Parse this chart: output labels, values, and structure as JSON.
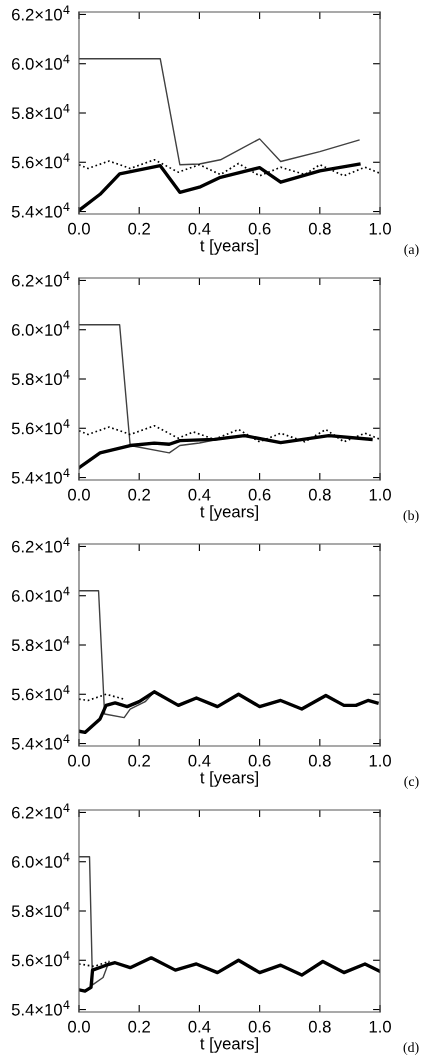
{
  "chart_data": [
    {
      "type": "line",
      "xlabel": "t [years]",
      "annotations": [
        "(a)"
      ],
      "xlim": [
        0,
        1
      ],
      "ylim": [
        53900,
        62100
      ],
      "xticks": [
        {
          "value": 0,
          "label": "0.0"
        },
        {
          "value": 0.2,
          "label": "0.2"
        },
        {
          "value": 0.4,
          "label": "0.4"
        },
        {
          "value": 0.6,
          "label": "0.6"
        },
        {
          "value": 0.8,
          "label": "0.8"
        },
        {
          "value": 1,
          "label": "1.0"
        }
      ],
      "yticks": [
        {
          "value": 54000,
          "label": "5.4×10$^{4}$"
        },
        {
          "value": 56000,
          "label": "5.6×10$^{4}$"
        },
        {
          "value": 58000,
          "label": "5.8×10$^{4}$"
        },
        {
          "value": 60000,
          "label": "6.0×10$^{4}$"
        },
        {
          "value": 62000,
          "label": "6.2×10$^{4}$"
        }
      ],
      "grid": false,
      "legend": false,
      "series": [
        {
          "color": "#404040",
          "line_style": "solid",
          "x": [
            0,
            0.27,
            0.335,
            0.4,
            0.47,
            0.6,
            0.67,
            0.8,
            0.93
          ],
          "values": [
            60200,
            60200,
            55900,
            55930,
            56100,
            56950,
            56030,
            56430,
            56900
          ]
        },
        {
          "color": "#000000",
          "line_style": "solid",
          "x": [
            0,
            0.07,
            0.135,
            0.27,
            0.335,
            0.4,
            0.47,
            0.6,
            0.67,
            0.8,
            0.93
          ],
          "values": [
            54050,
            54700,
            55530,
            55860,
            54780,
            54990,
            55390,
            55780,
            55190,
            55650,
            55920
          ]
        },
        {
          "color": "#000000",
          "line_style": "dotted",
          "x": [
            0,
            0.03,
            0.1,
            0.17,
            0.25,
            0.33,
            0.4,
            0.47,
            0.53,
            0.6,
            0.67,
            0.75,
            0.8,
            0.88,
            0.95,
            1.0
          ],
          "values": [
            55900,
            55750,
            56050,
            55750,
            56100,
            55600,
            55900,
            55500,
            55950,
            55450,
            55800,
            55500,
            55900,
            55450,
            55800,
            55550
          ]
        }
      ]
    },
    {
      "type": "line",
      "xlabel": "t [years]",
      "annotations": [
        "(b)"
      ],
      "xlim": [
        0,
        1
      ],
      "ylim": [
        53900,
        62100
      ],
      "xticks": [
        {
          "value": 0,
          "label": "0.0"
        },
        {
          "value": 0.2,
          "label": "0.2"
        },
        {
          "value": 0.4,
          "label": "0.4"
        },
        {
          "value": 0.6,
          "label": "0.6"
        },
        {
          "value": 0.8,
          "label": "0.8"
        },
        {
          "value": 1,
          "label": "1.0"
        }
      ],
      "yticks": [
        {
          "value": 54000,
          "label": "5.4×10$^{4}$"
        },
        {
          "value": 56000,
          "label": "5.6×10$^{4}$"
        },
        {
          "value": 58000,
          "label": "5.8×10$^{4}$"
        },
        {
          "value": 60000,
          "label": "6.0×10$^{4}$"
        },
        {
          "value": 62000,
          "label": "6.2×10$^{4}$"
        }
      ],
      "grid": false,
      "legend": false,
      "series": [
        {
          "color": "#404040",
          "line_style": "solid",
          "x": [
            0,
            0.135,
            0.17,
            0.3,
            0.335,
            0.4,
            0.5
          ],
          "values": [
            60200,
            60200,
            55300,
            55000,
            55300,
            55400,
            55650
          ]
        },
        {
          "color": "#000000",
          "line_style": "solid",
          "x": [
            0,
            0.07,
            0.17,
            0.25,
            0.3,
            0.335,
            0.45,
            0.55,
            0.67,
            0.83,
            0.97
          ],
          "values": [
            54400,
            55000,
            55300,
            55400,
            55350,
            55500,
            55550,
            55700,
            55420,
            55700,
            55550
          ]
        },
        {
          "color": "#000000",
          "line_style": "dotted",
          "x": [
            0,
            0.03,
            0.1,
            0.17,
            0.25,
            0.33,
            0.38,
            0.45,
            0.53,
            0.6,
            0.67,
            0.75,
            0.82,
            0.88,
            0.95,
            1.0
          ],
          "values": [
            55900,
            55750,
            56050,
            55750,
            56100,
            55600,
            55850,
            55550,
            55950,
            55450,
            55800,
            55450,
            55950,
            55450,
            55800,
            55550
          ]
        }
      ]
    },
    {
      "type": "line",
      "xlabel": "t [years]",
      "annotations": [
        "(c)"
      ],
      "xlim": [
        0,
        1
      ],
      "ylim": [
        53900,
        62100
      ],
      "xticks": [
        {
          "value": 0,
          "label": "0.0"
        },
        {
          "value": 0.2,
          "label": "0.2"
        },
        {
          "value": 0.4,
          "label": "0.4"
        },
        {
          "value": 0.6,
          "label": "0.6"
        },
        {
          "value": 0.8,
          "label": "0.8"
        },
        {
          "value": 1,
          "label": "1.0"
        }
      ],
      "yticks": [
        {
          "value": 54000,
          "label": "5.4×10$^{4}$"
        },
        {
          "value": 56000,
          "label": "5.6×10$^{4}$"
        },
        {
          "value": 58000,
          "label": "5.8×10$^{4}$"
        },
        {
          "value": 60000,
          "label": "6.0×10$^{4}$"
        },
        {
          "value": 62000,
          "label": "6.2×10$^{4}$"
        }
      ],
      "grid": false,
      "legend": false,
      "series": [
        {
          "color": "#404040",
          "line_style": "solid",
          "x": [
            0,
            0.065,
            0.085,
            0.15,
            0.17,
            0.22,
            0.25
          ],
          "values": [
            60200,
            60200,
            55200,
            55050,
            55400,
            55700,
            56100
          ]
        },
        {
          "color": "#000000",
          "line_style": "solid",
          "x": [
            0,
            0.02,
            0.07,
            0.09,
            0.12,
            0.16,
            0.2,
            0.25,
            0.33,
            0.39,
            0.46,
            0.53,
            0.6,
            0.67,
            0.74,
            0.82,
            0.88,
            0.92,
            0.96,
            0.99
          ],
          "values": [
            54500,
            54450,
            55000,
            55550,
            55650,
            55500,
            55700,
            56100,
            55550,
            55850,
            55500,
            56000,
            55500,
            55750,
            55400,
            55950,
            55550,
            55550,
            55750,
            55650
          ]
        },
        {
          "color": "#000000",
          "line_style": "dotted",
          "x": [
            0,
            0.03,
            0.09,
            0.15
          ],
          "values": [
            55800,
            55750,
            56000,
            55800
          ]
        }
      ]
    },
    {
      "type": "line",
      "xlabel": "t [years]",
      "annotations": [
        "(d)"
      ],
      "xlim": [
        0,
        1
      ],
      "ylim": [
        53900,
        62100
      ],
      "xticks": [
        {
          "value": 0,
          "label": "0.0"
        },
        {
          "value": 0.2,
          "label": "0.2"
        },
        {
          "value": 0.4,
          "label": "0.4"
        },
        {
          "value": 0.6,
          "label": "0.6"
        },
        {
          "value": 0.8,
          "label": "0.8"
        },
        {
          "value": 1,
          "label": "1.0"
        }
      ],
      "yticks": [
        {
          "value": 54000,
          "label": "5.4×10$^{4}$"
        },
        {
          "value": 56000,
          "label": "5.6×10$^{4}$"
        },
        {
          "value": 58000,
          "label": "5.8×10$^{4}$"
        },
        {
          "value": 60000,
          "label": "6.0×10$^{4}$"
        },
        {
          "value": 62000,
          "label": "6.2×10$^{4}$"
        }
      ],
      "grid": false,
      "legend": false,
      "series": [
        {
          "color": "#404040",
          "line_style": "solid",
          "x": [
            0,
            0.035,
            0.045,
            0.08,
            0.1
          ],
          "values": [
            60200,
            60200,
            55000,
            55300,
            55950
          ]
        },
        {
          "color": "#000000",
          "line_style": "solid",
          "x": [
            0,
            0.02,
            0.04,
            0.045,
            0.09,
            0.12,
            0.17,
            0.24,
            0.32,
            0.39,
            0.46,
            0.53,
            0.6,
            0.67,
            0.74,
            0.81,
            0.88,
            0.95,
            1.0
          ],
          "values": [
            54800,
            54750,
            54900,
            55600,
            55800,
            55900,
            55700,
            56100,
            55600,
            55850,
            55500,
            56000,
            55500,
            55800,
            55400,
            55950,
            55500,
            55850,
            55550
          ]
        },
        {
          "color": "#000000",
          "line_style": "dotted",
          "x": [
            0,
            0.05,
            0.1
          ],
          "values": [
            55850,
            55750,
            55950
          ]
        }
      ]
    }
  ]
}
